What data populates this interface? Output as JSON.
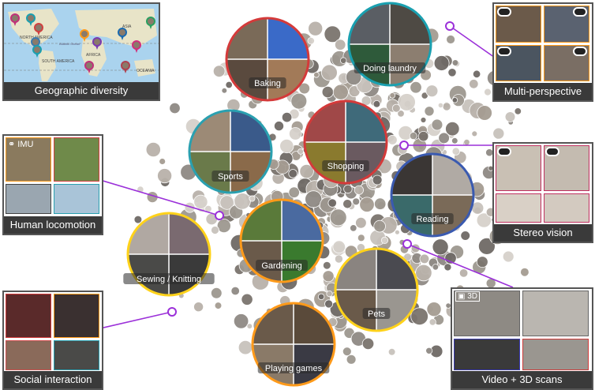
{
  "activities": [
    {
      "label": "Baking"
    },
    {
      "label": "Doing laundry"
    },
    {
      "label": "Shopping"
    },
    {
      "label": "Sports"
    },
    {
      "label": "Reading"
    },
    {
      "label": "Gardening"
    },
    {
      "label": "Sewing / Knitting"
    },
    {
      "label": "Pets"
    },
    {
      "label": "Playing games"
    }
  ],
  "panels": {
    "geographic": {
      "caption": "Geographic diversity",
      "map_labels": [
        "NORTH AMERICA",
        "SOUTH AMERICA",
        "ASIA",
        "OCEANIA",
        "Atlantic Ocean",
        "AFRICA"
      ]
    },
    "multi_perspective": {
      "caption": "Multi-perspective"
    },
    "human_locomotion": {
      "caption": "Human locomotion",
      "badge": "IMU"
    },
    "stereo_vision": {
      "caption": "Stereo vision"
    },
    "social_interaction": {
      "caption": "Social interaction"
    },
    "video_3d": {
      "caption": "Video + 3D scans",
      "badge": "3D"
    }
  },
  "colors": {
    "connector": "#9b30d9",
    "caption_bg": "#3a3a3a",
    "tile_border": "#ff9a1a"
  }
}
